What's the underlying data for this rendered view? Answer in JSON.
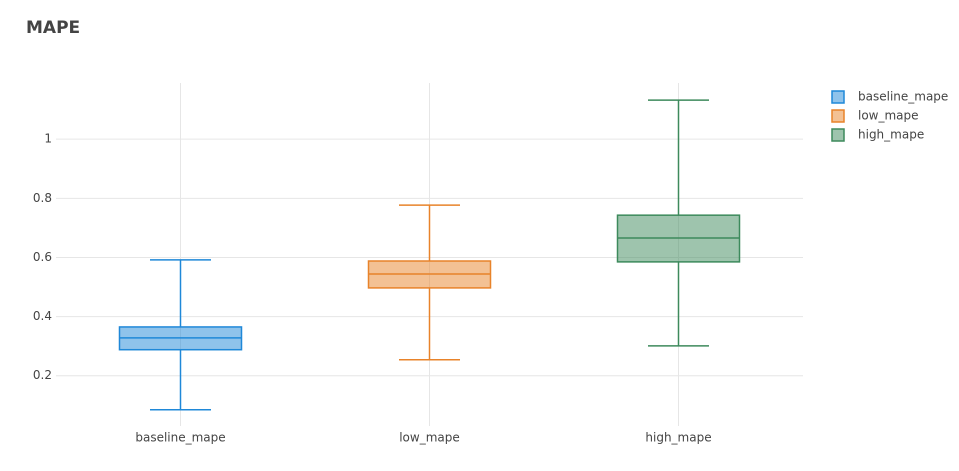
{
  "chart_data": {
    "type": "box",
    "title": "MAPE",
    "categories": [
      "baseline_mape",
      "low_mape",
      "high_mape"
    ],
    "series": [
      {
        "name": "baseline_mape",
        "color": "#1f88d8",
        "lower": 0.085,
        "q1": 0.288,
        "median": 0.328,
        "q3": 0.365,
        "upper": 0.592
      },
      {
        "name": "low_mape",
        "color": "#e8832a",
        "lower": 0.254,
        "q1": 0.497,
        "median": 0.544,
        "q3": 0.588,
        "upper": 0.777
      },
      {
        "name": "high_mape",
        "color": "#3d8a5c",
        "lower": 0.301,
        "q1": 0.585,
        "median": 0.666,
        "q3": 0.743,
        "upper": 1.132
      }
    ],
    "ylim": [
      0.03,
      1.19
    ],
    "yticks": [
      0.2,
      0.4,
      0.6,
      0.8,
      1
    ],
    "grid": true,
    "legend": "top-right"
  }
}
